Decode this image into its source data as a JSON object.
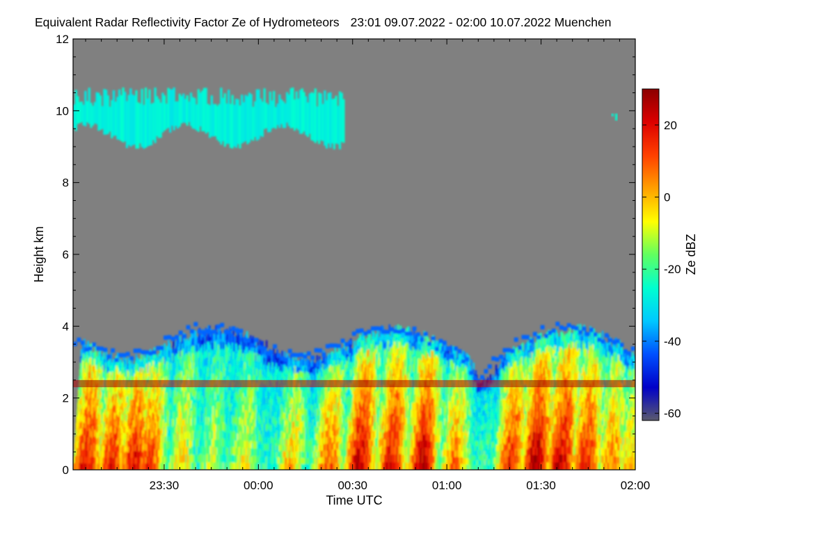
{
  "chart_data": {
    "type": "heatmap",
    "title": "Equivalent Radar Reflectivity Factor Ze of Hydrometeors",
    "time_range": "23:01 09.07.2022 - 02:00 10.07.2022",
    "location": "Muenchen",
    "xlabel": "Time UTC",
    "ylabel": "Height km",
    "x_start_min": -59,
    "x_end_min": 120,
    "x_ticks": [
      {
        "label": "23:30",
        "minutes": -30
      },
      {
        "label": "00:00",
        "minutes": 0
      },
      {
        "label": "00:30",
        "minutes": 30
      },
      {
        "label": "01:00",
        "minutes": 60
      },
      {
        "label": "01:30",
        "minutes": 90
      },
      {
        "label": "02:00",
        "minutes": 120
      }
    ],
    "ylim": [
      0,
      12
    ],
    "y_ticks": [
      "0",
      "2",
      "4",
      "6",
      "8",
      "10",
      "12"
    ],
    "colorbar": {
      "label": "Ze dBZ",
      "range": [
        -62,
        30
      ],
      "ticks": [
        "-60",
        "-40",
        "-20",
        "0",
        "20"
      ],
      "tick_values": [
        -60,
        -40,
        -20,
        0,
        20
      ],
      "colors": [
        "#5a5a6e",
        "#0000c8",
        "#0050ff",
        "#00c8ff",
        "#00ffd0",
        "#60ff60",
        "#ffff00",
        "#ffa000",
        "#ff4000",
        "#dc0000",
        "#8b0000"
      ]
    },
    "background_color": "#808080",
    "features": [
      {
        "name": "cirrus layer",
        "from_min": -59,
        "to_min": 27,
        "height_km": [
          8.8,
          10.6
        ],
        "ze_dbz": [
          -30,
          -25
        ]
      },
      {
        "name": "cirrus fragment",
        "from_min": 110,
        "to_min": 115,
        "height_km": [
          9.5,
          9.9
        ],
        "ze_dbz": [
          -28,
          -25
        ]
      },
      {
        "name": "precipitation layer",
        "from_min": -59,
        "to_min": 120,
        "height_km": [
          0,
          4.0
        ],
        "ze_dbz": [
          -40,
          28
        ]
      },
      {
        "name": "melting layer bright band",
        "from_min": -59,
        "to_min": 120,
        "height_km": [
          2.3,
          2.5
        ],
        "ze_dbz": [
          20,
          30
        ]
      }
    ]
  }
}
